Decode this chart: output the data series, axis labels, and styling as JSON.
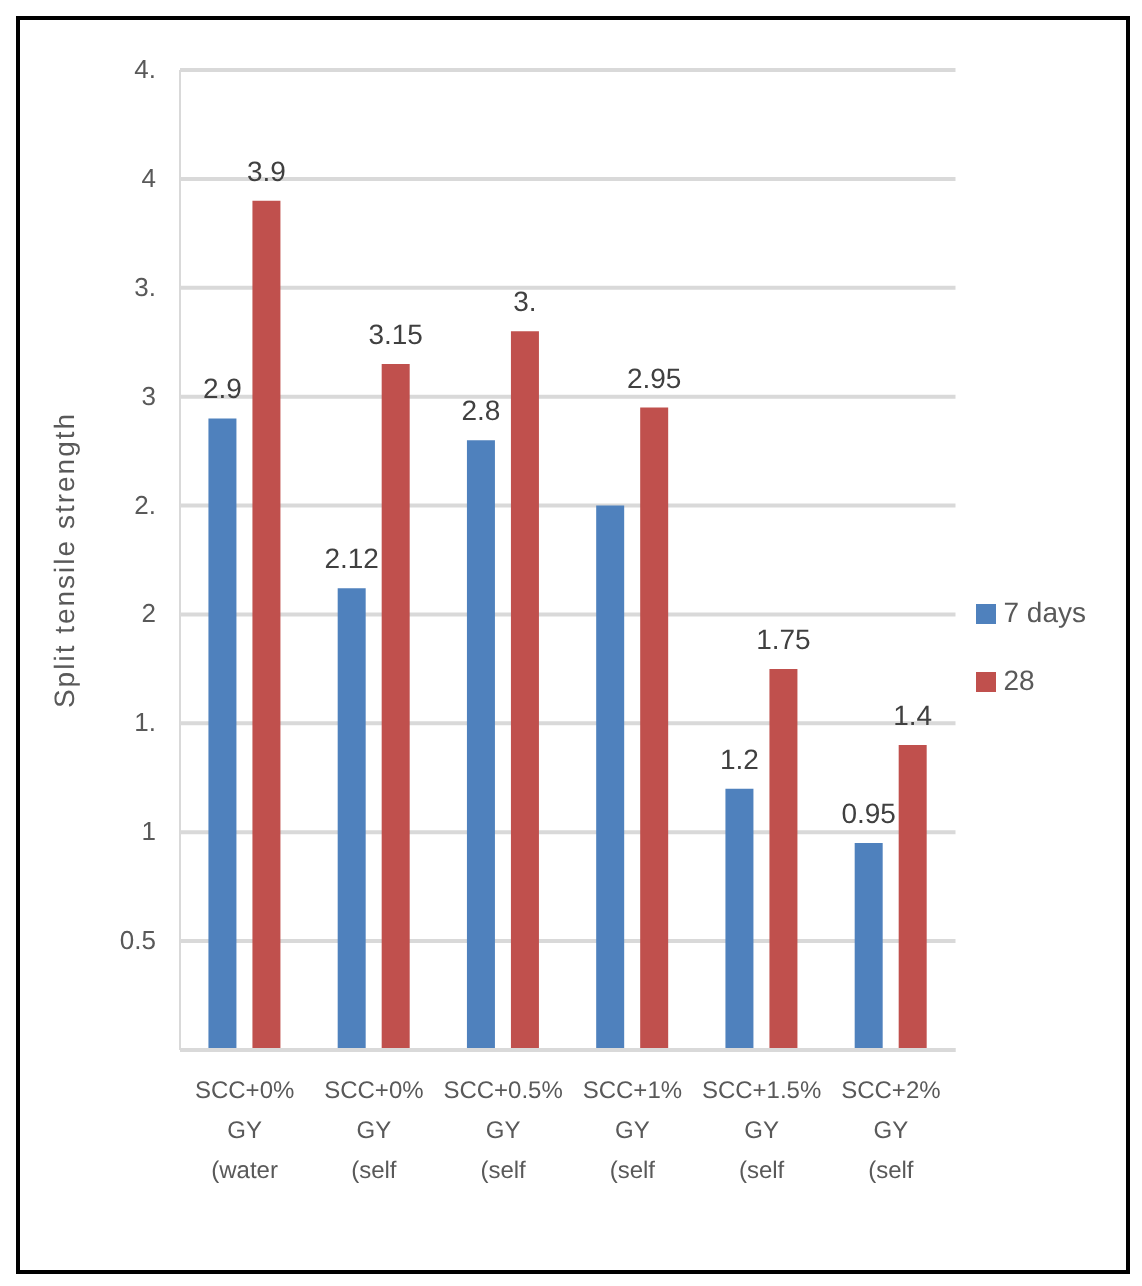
{
  "chart_data": {
    "type": "bar",
    "ylabel": "Split tensile strength",
    "categories": [
      "SCC+0% GY (water",
      "SCC+0% GY (self",
      "SCC+0.5% GY (self",
      "SCC+1% GY (self",
      "SCC+1.5% GY (self",
      "SCC+2% GY (self"
    ],
    "series": [
      {
        "name": "7 days",
        "color": "#4f81bd",
        "values": [
          2.9,
          2.12,
          2.8,
          2.5,
          1.2,
          0.95
        ],
        "value_labels": [
          "2.9",
          "2.12",
          "2.8",
          null,
          "1.2",
          "0.95"
        ]
      },
      {
        "name": "28",
        "color": "#c0504d",
        "values": [
          3.9,
          3.15,
          3.3,
          2.95,
          1.75,
          1.4
        ],
        "value_labels": [
          "3.9",
          "3.15",
          "3.",
          "2.95",
          "1.75",
          "1.4"
        ]
      }
    ],
    "ylim": [
      0,
      4.5
    ],
    "yticks": [
      {
        "value": 0,
        "label": null
      },
      {
        "value": 0.5,
        "label": "0.5"
      },
      {
        "value": 1,
        "label": "1"
      },
      {
        "value": 1.5,
        "label": "1."
      },
      {
        "value": 2,
        "label": "2"
      },
      {
        "value": 2.5,
        "label": "2."
      },
      {
        "value": 3,
        "label": "3"
      },
      {
        "value": 3.5,
        "label": "3."
      },
      {
        "value": 4,
        "label": "4"
      },
      {
        "value": 4.5,
        "label": "4."
      }
    ],
    "grid": "y",
    "legend": "right"
  }
}
